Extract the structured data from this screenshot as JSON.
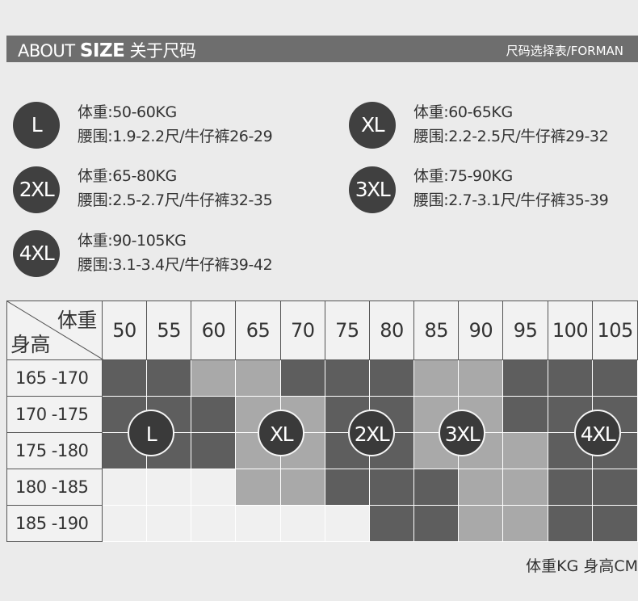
{
  "header": {
    "about": "ABOUT",
    "size": "SIZE",
    "cn_title": "关于尺码",
    "right_title": "尺码选择表/FORMAN"
  },
  "sizes": [
    {
      "label": "L",
      "weight": "体重:50-60KG",
      "waist": "腰围:1.9-2.2尺/牛仔裤26-29"
    },
    {
      "label": "XL",
      "weight": "体重:60-65KG",
      "waist": "腰围:2.2-2.5尺/牛仔裤29-32"
    },
    {
      "label": "2XL",
      "weight": "体重:65-80KG",
      "waist": "腰围:2.5-2.7尺/牛仔裤32-35"
    },
    {
      "label": "3XL",
      "weight": "体重:75-90KG",
      "waist": "腰围:2.7-3.1尺/牛仔裤35-39"
    },
    {
      "label": "4XL",
      "weight": "体重:90-105KG",
      "waist": "腰围:3.1-3.4尺/牛仔裤39-42"
    }
  ],
  "grid": {
    "corner_weight": "体重",
    "corner_height": "身高",
    "weights": [
      "50",
      "55",
      "60",
      "65",
      "70",
      "75",
      "80",
      "85",
      "90",
      "95",
      "100",
      "105"
    ],
    "heights": [
      "165 -170",
      "170 -175",
      "175 -180",
      "180 -185",
      "185 -190"
    ],
    "cells": [
      [
        "d",
        "d",
        "m",
        "m",
        "d",
        "d",
        "d",
        "m",
        "m",
        "d",
        "d",
        "d"
      ],
      [
        "d",
        "d",
        "d",
        "m",
        "m",
        "d",
        "d",
        "m",
        "m",
        "d",
        "d",
        "d"
      ],
      [
        "d",
        "d",
        "d",
        "m",
        "m",
        "d",
        "d",
        "m",
        "m",
        "m",
        "d",
        "d"
      ],
      [
        "l",
        "l",
        "l",
        "m",
        "m",
        "d",
        "d",
        "d",
        "m",
        "m",
        "d",
        "d"
      ],
      [
        "l",
        "l",
        "l",
        "l",
        "l",
        "l",
        "d",
        "d",
        "m",
        "m",
        "d",
        "d"
      ]
    ],
    "badges": [
      "L",
      "XL",
      "2XL",
      "3XL",
      "4XL"
    ]
  },
  "footer": "体重KG  身高CM",
  "colors": {
    "dark": "#5e5e5e",
    "medium": "#a9a9a9",
    "light": "#f0f0f0",
    "badge": "#404040"
  }
}
